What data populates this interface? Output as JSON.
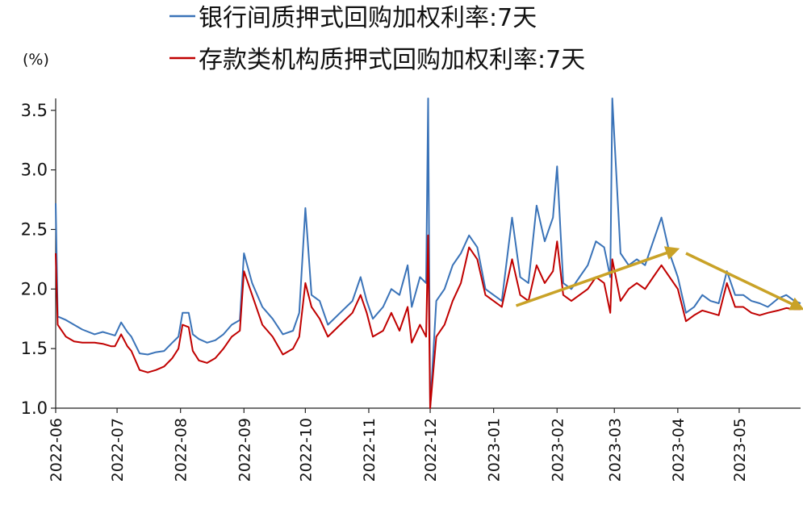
{
  "chart_data": {
    "type": "line",
    "unit": "(%)",
    "ylim": [
      1.0,
      3.6
    ],
    "yticks": [
      1.0,
      1.5,
      2.0,
      2.5,
      3.0,
      3.5
    ],
    "ytick_labels": [
      "1.0",
      "1.5",
      "2.0",
      "2.5",
      "3.0",
      "3.5"
    ],
    "xlim": [
      "2022-06-01",
      "2023-05-31"
    ],
    "xticks": [
      "2022-06-01",
      "2022-07-01",
      "2022-08-01",
      "2022-09-01",
      "2022-10-01",
      "2022-11-01",
      "2022-12-01",
      "2023-01-01",
      "2023-02-01",
      "2023-03-01",
      "2023-04-01",
      "2023-05-01"
    ],
    "xtick_labels": [
      "2022-06",
      "2022-07",
      "2022-08",
      "2022-09",
      "2022-10",
      "2022-11",
      "2022-12",
      "2023-01",
      "2023-02",
      "2023-03",
      "2023-04",
      "2023-05"
    ],
    "grid": false,
    "legend_position": "top-center",
    "series": [
      {
        "name": "银行间质押式回购加权利率:7天",
        "color": "#3a73b8",
        "points": [
          [
            "2022-06-01",
            2.72
          ],
          [
            "2022-06-02",
            1.77
          ],
          [
            "2022-06-06",
            1.74
          ],
          [
            "2022-06-10",
            1.7
          ],
          [
            "2022-06-14",
            1.66
          ],
          [
            "2022-06-20",
            1.62
          ],
          [
            "2022-06-24",
            1.64
          ],
          [
            "2022-06-28",
            1.62
          ],
          [
            "2022-06-30",
            1.61
          ],
          [
            "2022-07-03",
            1.72
          ],
          [
            "2022-07-06",
            1.64
          ],
          [
            "2022-07-08",
            1.6
          ],
          [
            "2022-07-12",
            1.46
          ],
          [
            "2022-07-16",
            1.45
          ],
          [
            "2022-07-20",
            1.47
          ],
          [
            "2022-07-24",
            1.48
          ],
          [
            "2022-07-28",
            1.55
          ],
          [
            "2022-07-31",
            1.6
          ],
          [
            "2022-08-02",
            1.8
          ],
          [
            "2022-08-05",
            1.8
          ],
          [
            "2022-08-07",
            1.62
          ],
          [
            "2022-08-10",
            1.58
          ],
          [
            "2022-08-14",
            1.55
          ],
          [
            "2022-08-18",
            1.57
          ],
          [
            "2022-08-22",
            1.62
          ],
          [
            "2022-08-26",
            1.7
          ],
          [
            "2022-08-30",
            1.74
          ],
          [
            "2022-09-01",
            2.3
          ],
          [
            "2022-09-05",
            2.05
          ],
          [
            "2022-09-10",
            1.85
          ],
          [
            "2022-09-15",
            1.75
          ],
          [
            "2022-09-20",
            1.62
          ],
          [
            "2022-09-25",
            1.65
          ],
          [
            "2022-09-28",
            1.8
          ],
          [
            "2022-10-01",
            2.68
          ],
          [
            "2022-10-04",
            1.95
          ],
          [
            "2022-10-08",
            1.9
          ],
          [
            "2022-10-12",
            1.7
          ],
          [
            "2022-10-18",
            1.8
          ],
          [
            "2022-10-24",
            1.9
          ],
          [
            "2022-10-28",
            2.1
          ],
          [
            "2022-10-31",
            1.9
          ],
          [
            "2022-11-03",
            1.75
          ],
          [
            "2022-11-08",
            1.85
          ],
          [
            "2022-11-12",
            2.0
          ],
          [
            "2022-11-16",
            1.95
          ],
          [
            "2022-11-20",
            2.2
          ],
          [
            "2022-11-22",
            1.85
          ],
          [
            "2022-11-26",
            2.1
          ],
          [
            "2022-11-29",
            2.05
          ],
          [
            "2022-11-30",
            3.6
          ],
          [
            "2022-12-01",
            1.0
          ],
          [
            "2022-12-04",
            1.9
          ],
          [
            "2022-12-08",
            2.0
          ],
          [
            "2022-12-12",
            2.2
          ],
          [
            "2022-12-16",
            2.3
          ],
          [
            "2022-12-20",
            2.45
          ],
          [
            "2022-12-24",
            2.35
          ],
          [
            "2022-12-28",
            2.0
          ],
          [
            "2023-01-01",
            1.95
          ],
          [
            "2023-01-05",
            1.9
          ],
          [
            "2023-01-10",
            2.6
          ],
          [
            "2023-01-14",
            2.1
          ],
          [
            "2023-01-18",
            2.05
          ],
          [
            "2023-01-22",
            2.7
          ],
          [
            "2023-01-26",
            2.4
          ],
          [
            "2023-01-30",
            2.6
          ],
          [
            "2023-02-01",
            3.03
          ],
          [
            "2023-02-04",
            2.05
          ],
          [
            "2023-02-08",
            2.0
          ],
          [
            "2023-02-12",
            2.1
          ],
          [
            "2023-02-16",
            2.2
          ],
          [
            "2023-02-20",
            2.4
          ],
          [
            "2023-02-24",
            2.35
          ],
          [
            "2023-02-27",
            2.1
          ],
          [
            "2023-02-28",
            3.6
          ],
          [
            "2023-03-04",
            2.3
          ],
          [
            "2023-03-08",
            2.2
          ],
          [
            "2023-03-12",
            2.25
          ],
          [
            "2023-03-16",
            2.2
          ],
          [
            "2023-03-20",
            2.4
          ],
          [
            "2023-03-24",
            2.6
          ],
          [
            "2023-03-28",
            2.3
          ],
          [
            "2023-04-01",
            2.1
          ],
          [
            "2023-04-05",
            1.8
          ],
          [
            "2023-04-09",
            1.85
          ],
          [
            "2023-04-13",
            1.95
          ],
          [
            "2023-04-17",
            1.9
          ],
          [
            "2023-04-21",
            1.88
          ],
          [
            "2023-04-25",
            2.15
          ],
          [
            "2023-04-29",
            1.95
          ],
          [
            "2023-05-03",
            1.95
          ],
          [
            "2023-05-07",
            1.9
          ],
          [
            "2023-05-11",
            1.88
          ],
          [
            "2023-05-15",
            1.85
          ],
          [
            "2023-05-20",
            1.92
          ],
          [
            "2023-05-24",
            1.95
          ],
          [
            "2023-05-28",
            1.9
          ],
          [
            "2023-05-31",
            1.88
          ]
        ]
      },
      {
        "name": "存款类机构质押式回购加权利率:7天",
        "color": "#c00000",
        "points": [
          [
            "2022-06-01",
            2.3
          ],
          [
            "2022-06-02",
            1.7
          ],
          [
            "2022-06-06",
            1.6
          ],
          [
            "2022-06-10",
            1.56
          ],
          [
            "2022-06-14",
            1.55
          ],
          [
            "2022-06-20",
            1.55
          ],
          [
            "2022-06-24",
            1.54
          ],
          [
            "2022-06-28",
            1.52
          ],
          [
            "2022-06-30",
            1.52
          ],
          [
            "2022-07-03",
            1.62
          ],
          [
            "2022-07-06",
            1.52
          ],
          [
            "2022-07-08",
            1.48
          ],
          [
            "2022-07-12",
            1.32
          ],
          [
            "2022-07-16",
            1.3
          ],
          [
            "2022-07-20",
            1.32
          ],
          [
            "2022-07-24",
            1.35
          ],
          [
            "2022-07-28",
            1.42
          ],
          [
            "2022-07-31",
            1.5
          ],
          [
            "2022-08-02",
            1.7
          ],
          [
            "2022-08-05",
            1.68
          ],
          [
            "2022-08-07",
            1.48
          ],
          [
            "2022-08-10",
            1.4
          ],
          [
            "2022-08-14",
            1.38
          ],
          [
            "2022-08-18",
            1.42
          ],
          [
            "2022-08-22",
            1.5
          ],
          [
            "2022-08-26",
            1.6
          ],
          [
            "2022-08-30",
            1.65
          ],
          [
            "2022-09-01",
            2.15
          ],
          [
            "2022-09-05",
            1.95
          ],
          [
            "2022-09-10",
            1.7
          ],
          [
            "2022-09-15",
            1.6
          ],
          [
            "2022-09-20",
            1.45
          ],
          [
            "2022-09-25",
            1.5
          ],
          [
            "2022-09-28",
            1.6
          ],
          [
            "2022-10-01",
            2.05
          ],
          [
            "2022-10-04",
            1.85
          ],
          [
            "2022-10-08",
            1.75
          ],
          [
            "2022-10-12",
            1.6
          ],
          [
            "2022-10-18",
            1.7
          ],
          [
            "2022-10-24",
            1.8
          ],
          [
            "2022-10-28",
            1.95
          ],
          [
            "2022-10-31",
            1.8
          ],
          [
            "2022-11-03",
            1.6
          ],
          [
            "2022-11-08",
            1.65
          ],
          [
            "2022-11-12",
            1.8
          ],
          [
            "2022-11-16",
            1.65
          ],
          [
            "2022-11-20",
            1.85
          ],
          [
            "2022-11-22",
            1.55
          ],
          [
            "2022-11-26",
            1.7
          ],
          [
            "2022-11-29",
            1.6
          ],
          [
            "2022-11-30",
            2.45
          ],
          [
            "2022-12-01",
            1.0
          ],
          [
            "2022-12-04",
            1.6
          ],
          [
            "2022-12-08",
            1.7
          ],
          [
            "2022-12-12",
            1.9
          ],
          [
            "2022-12-16",
            2.05
          ],
          [
            "2022-12-20",
            2.35
          ],
          [
            "2022-12-24",
            2.25
          ],
          [
            "2022-12-28",
            1.95
          ],
          [
            "2023-01-01",
            1.9
          ],
          [
            "2023-01-05",
            1.85
          ],
          [
            "2023-01-10",
            2.25
          ],
          [
            "2023-01-14",
            1.95
          ],
          [
            "2023-01-18",
            1.9
          ],
          [
            "2023-01-22",
            2.2
          ],
          [
            "2023-01-26",
            2.05
          ],
          [
            "2023-01-30",
            2.15
          ],
          [
            "2023-02-01",
            2.4
          ],
          [
            "2023-02-04",
            1.95
          ],
          [
            "2023-02-08",
            1.9
          ],
          [
            "2023-02-12",
            1.95
          ],
          [
            "2023-02-16",
            2.0
          ],
          [
            "2023-02-20",
            2.1
          ],
          [
            "2023-02-24",
            2.05
          ],
          [
            "2023-02-27",
            1.8
          ],
          [
            "2023-02-28",
            2.25
          ],
          [
            "2023-03-04",
            1.9
          ],
          [
            "2023-03-08",
            2.0
          ],
          [
            "2023-03-12",
            2.05
          ],
          [
            "2023-03-16",
            2.0
          ],
          [
            "2023-03-20",
            2.1
          ],
          [
            "2023-03-24",
            2.2
          ],
          [
            "2023-03-28",
            2.1
          ],
          [
            "2023-04-01",
            2.0
          ],
          [
            "2023-04-05",
            1.73
          ],
          [
            "2023-04-09",
            1.78
          ],
          [
            "2023-04-13",
            1.82
          ],
          [
            "2023-04-17",
            1.8
          ],
          [
            "2023-04-21",
            1.78
          ],
          [
            "2023-04-25",
            2.05
          ],
          [
            "2023-04-29",
            1.85
          ],
          [
            "2023-05-03",
            1.85
          ],
          [
            "2023-05-07",
            1.8
          ],
          [
            "2023-05-11",
            1.78
          ],
          [
            "2023-05-15",
            1.8
          ],
          [
            "2023-05-20",
            1.82
          ],
          [
            "2023-05-24",
            1.84
          ],
          [
            "2023-05-28",
            1.83
          ],
          [
            "2023-05-31",
            1.83
          ]
        ]
      }
    ],
    "annotations": [
      {
        "type": "arrow",
        "color": "#c9a227",
        "from": [
          "2023-01-12",
          1.86
        ],
        "to": [
          "2023-03-31",
          2.33
        ]
      },
      {
        "type": "arrow",
        "color": "#c9a227",
        "from": [
          "2023-04-05",
          2.3
        ],
        "to": [
          "2023-05-31",
          1.84
        ]
      }
    ]
  }
}
